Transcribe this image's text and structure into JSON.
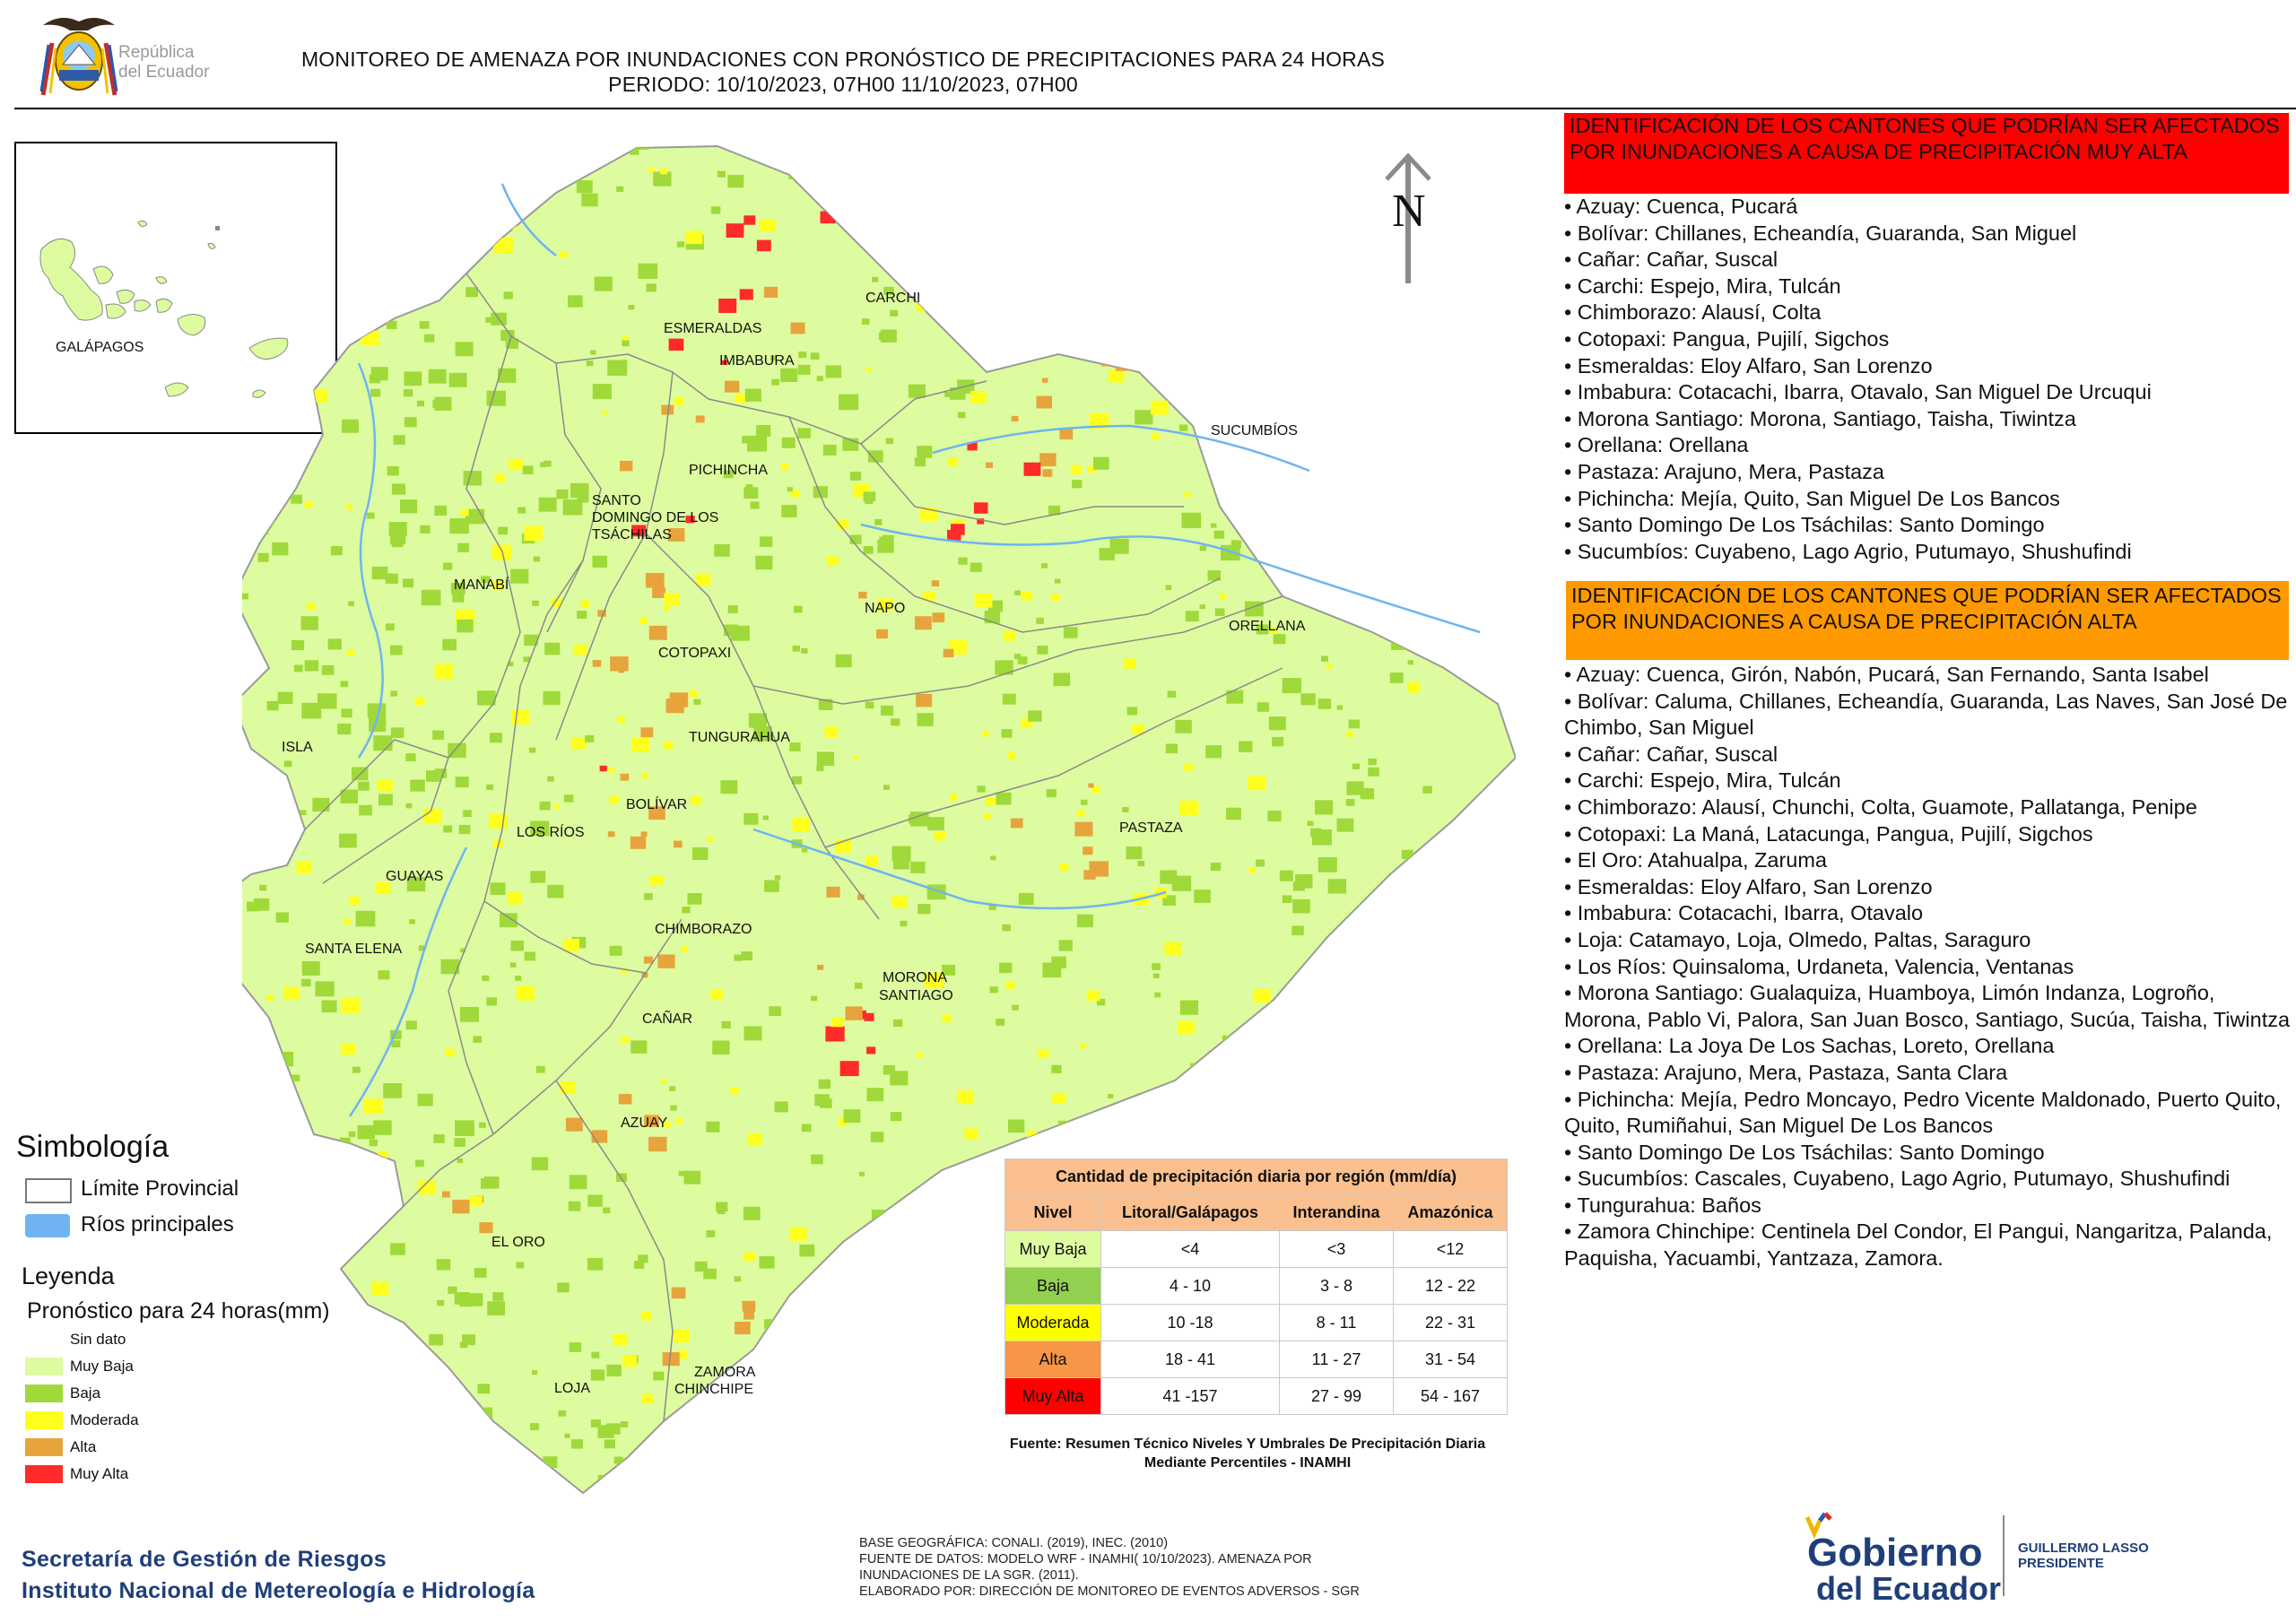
{
  "header": {
    "title_line1": "MONITOREO DE AMENAZA POR INUNDACIONES  CON PRONÓSTICO DE  PRECIPITACIONES PARA 24 HORAS",
    "title_line2": "PERIODO: 10/10/2023, 07H00 11/10/2023, 07H00"
  },
  "logo_republica": {
    "line1": "República",
    "line2": "del Ecuador"
  },
  "map": {
    "inset_label": "GALÁPAGOS",
    "north_label": "N",
    "province_labels": [
      "CARCHI",
      "ESMERALDAS",
      "IMBABURA",
      "SUCUMBÍOS",
      "SANTO",
      "DOMINGO DE LOS",
      "TSÁCHILAS",
      "PICHINCHA",
      "MANABÍ",
      "NAPO",
      "ORELLANA",
      "COTOPAXI",
      "TUNGURAHUA",
      "ISLA",
      "BOLÍVAR",
      "LOS RÍOS",
      "PASTAZA",
      "GUAYAS",
      "SANTA ELENA",
      "CHIMBORAZO",
      "MORONA",
      "SANTIAGO",
      "CAÑAR",
      "AZUAY",
      "EL ORO",
      "ZAMORA",
      "CHINCHIPE",
      "LOJA"
    ]
  },
  "red_section": {
    "header": "IDENTIFICACIÓN DE LOS CANTONES QUE PODRÍAN SER AFECTADOS POR INUNDACIONES  A CAUSA DE PRECIPITACIÓN MUY ALTA",
    "items": [
      "• Azuay: Cuenca, Pucará",
      "• Bolívar: Chillanes, Echeandía, Guaranda, San Miguel",
      "• Cañar: Cañar, Suscal",
      "• Carchi: Espejo, Mira, Tulcán",
      "• Chimborazo: Alausí, Colta",
      "• Cotopaxi: Pangua, Pujilí, Sigchos",
      "• Esmeraldas: Eloy Alfaro, San Lorenzo",
      "• Imbabura: Cotacachi, Ibarra, Otavalo, San Miguel De Urcuqui",
      "• Morona Santiago: Morona, Santiago, Taisha, Tiwintza",
      "• Orellana: Orellana",
      "• Pastaza: Arajuno, Mera, Pastaza",
      "• Pichincha: Mejía, Quito, San Miguel De Los Bancos",
      "• Santo Domingo De Los Tsáchilas: Santo Domingo",
      "• Sucumbíos: Cuyabeno, Lago Agrio, Putumayo, Shushufindi"
    ]
  },
  "orange_section": {
    "header": "IDENTIFICACIÓN DE LOS CANTONES QUE  PODRÍAN SER AFECTADOS POR INUNDACIONES  A CAUSA DE PRECIPITACIÓN ALTA",
    "items": [
      "• Azuay: Cuenca, Girón, Nabón, Pucará, San Fernando, Santa Isabel",
      "• Bolívar: Caluma, Chillanes, Echeandía, Guaranda, Las Naves, San José De Chimbo, San Miguel",
      "• Cañar: Cañar, Suscal",
      "• Carchi: Espejo, Mira, Tulcán",
      "• Chimborazo: Alausí, Chunchi, Colta, Guamote, Pallatanga, Penipe",
      "• Cotopaxi: La Maná, Latacunga, Pangua, Pujilí, Sigchos",
      "• El Oro: Atahualpa, Zaruma",
      "• Esmeraldas: Eloy Alfaro, San Lorenzo",
      "• Imbabura: Cotacachi, Ibarra, Otavalo",
      "• Loja: Catamayo, Loja, Olmedo, Paltas, Saraguro",
      "• Los Ríos: Quinsaloma, Urdaneta, Valencia, Ventanas",
      "• Morona Santiago: Gualaquiza, Huamboya, Limón Indanza, Logroño, Morona, Pablo Vi, Palora, San Juan Bosco, Santiago, Sucúa, Taisha, Tiwintza",
      "• Orellana: La Joya De Los Sachas, Loreto, Orellana",
      "• Pastaza: Arajuno, Mera, Pastaza, Santa Clara",
      "• Pichincha: Mejía, Pedro Moncayo, Pedro Vicente Maldonado, Puerto Quito, Quito, Rumiñahui, San Miguel De Los Bancos",
      "• Santo Domingo De Los Tsáchilas: Santo Domingo",
      "• Sucumbíos: Cascales, Cuyabeno, Lago Agrio, Putumayo, Shushufindi",
      "• Tungurahua: Baños",
      "• Zamora Chinchipe: Centinela Del Condor, El Pangui, Nangaritza, Palanda, Paquisha, Yacuambi, Yantzaza, Zamora."
    ]
  },
  "simbologia": {
    "title": "Simbología",
    "limite": "Límite Provincial",
    "rios": "Ríos principales",
    "river_color": "#6fb4f0"
  },
  "leyenda": {
    "title": "Leyenda",
    "subtitle": "Pronóstico para 24 horas(mm)",
    "items": [
      {
        "label": "Sin dato",
        "color": "#ffffff"
      },
      {
        "label": "Muy Baja",
        "color": "#ddfc9f"
      },
      {
        "label": "Baja",
        "color": "#9fd93a"
      },
      {
        "label": "Moderada",
        "color": "#ffff1e"
      },
      {
        "label": "Alta",
        "color": "#e8a43c"
      },
      {
        "label": "Muy Alta",
        "color": "#ff2a2a"
      }
    ]
  },
  "precip_table": {
    "title": "Cantidad de precipitación diaria por región (mm/día)",
    "headers": [
      "Nivel",
      "Litoral/Galápagos",
      "Interandina",
      "Amazónica"
    ],
    "rows": [
      {
        "nivel": "Muy Baja",
        "color": "#ddfc9f",
        "litoral": "<4",
        "interandina": "<3",
        "amazonica": "<12"
      },
      {
        "nivel": "Baja",
        "color": "#92d050",
        "litoral": "4 - 10",
        "interandina": "3 - 8",
        "amazonica": "12 - 22"
      },
      {
        "nivel": "Moderada",
        "color": "#ffff00",
        "litoral": "10 -18",
        "interandina": "8 - 11",
        "amazonica": "22 - 31"
      },
      {
        "nivel": "Alta",
        "color": "#f79646",
        "litoral": "18 - 41",
        "interandina": "11 - 27",
        "amazonica": "31 - 54"
      },
      {
        "nivel": "Muy Alta",
        "color": "#ff0000",
        "litoral": "41 -157",
        "interandina": "27 - 99",
        "amazonica": "54 - 167"
      }
    ],
    "header_color": "#fac08f",
    "source": "Fuente: Resumen Técnico Niveles Y Umbrales De Precipitación Diaria Mediante Percentiles - INAMHI"
  },
  "footer": {
    "sgr_line1": "Secretaría de Gestión de Riesgos",
    "sgr_line2": "Instituto Nacional de Metereología e Hidrología",
    "base_lines": [
      "BASE GEOGRÁFICA: CONALI. (2019), INEC. (2010)",
      "FUENTE DE DATOS: MODELO WRF - INAMHI( 10/10/2023).  AMENAZA POR",
      "INUNDACIONES DE LA SGR. (2011).",
      "ELABORADO POR: DIRECCIÓN DE MONITOREO DE EVENTOS ADVERSOS - SGR"
    ],
    "gobierno_line1": "Gobierno",
    "gobierno_line2": "del Ecuador",
    "lasso_line1": "GUILLERMO LASSO",
    "lasso_line2": "PRESIDENTE"
  }
}
